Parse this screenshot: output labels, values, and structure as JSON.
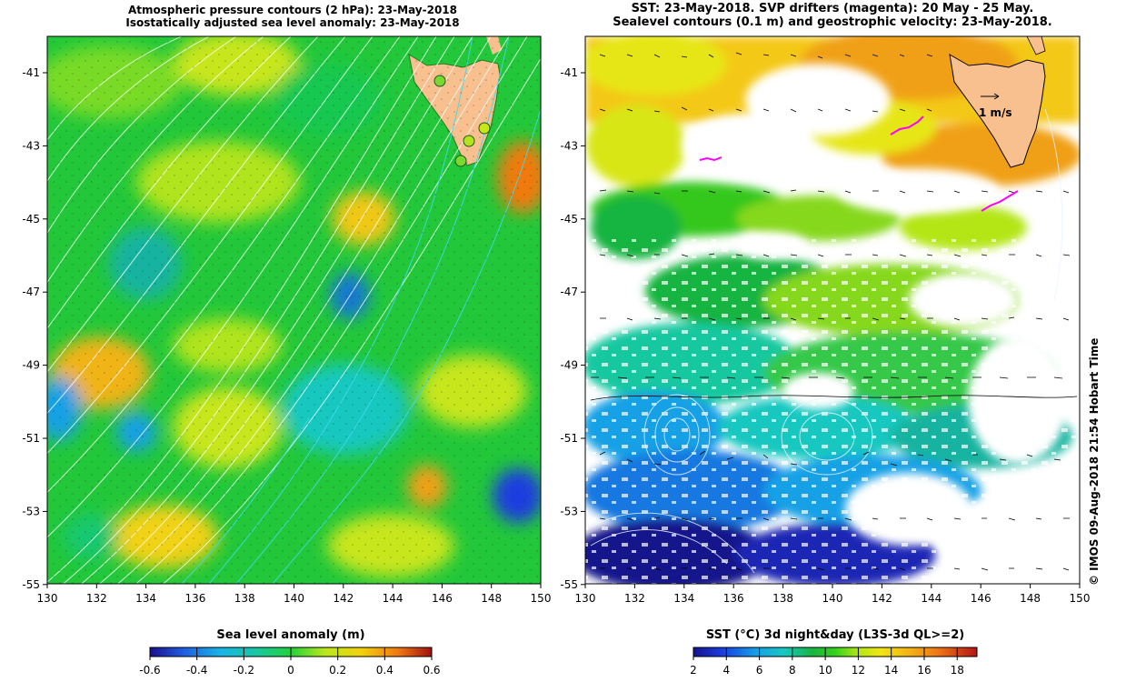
{
  "left_panel": {
    "title_line1": "Atmospheric pressure contours (2 hPa): 23-May-2018",
    "title_line2": "Isostatically adjusted sea level anomaly: 23-May-2018",
    "legend_title": "Sea level anomaly (m)",
    "legend_ticks": [
      "-0.6",
      "-0.4",
      "-0.2",
      "0",
      "0.2",
      "0.4",
      "0.6"
    ]
  },
  "right_panel": {
    "title_line1": "SST: 23-May-2018. SVP drifters (magenta): 20 May - 25 May.",
    "title_line2": "Sealevel contours (0.1 m) and geostrophic velocity: 23-May-2018.",
    "legend_title": "SST (°C) 3d night&day (L3S-3d QL>=2)",
    "legend_ticks": [
      "2",
      "4",
      "6",
      "8",
      "10",
      "12",
      "14",
      "16",
      "18"
    ],
    "velocity_scale": "1 m/s"
  },
  "axes": {
    "lat_ticks": [
      "-41",
      "-43",
      "-45",
      "-47",
      "-49",
      "-51",
      "-53",
      "-55"
    ],
    "lon_ticks": [
      "130",
      "132",
      "134",
      "136",
      "138",
      "140",
      "142",
      "144",
      "146",
      "148",
      "150"
    ]
  },
  "credit": "© IMOS 09-Aug-2018 21:54 Hobart Time",
  "colors": {
    "land": "#f8c08e",
    "sla_base": "#22c83a",
    "drifter": "#ff00ff"
  }
}
